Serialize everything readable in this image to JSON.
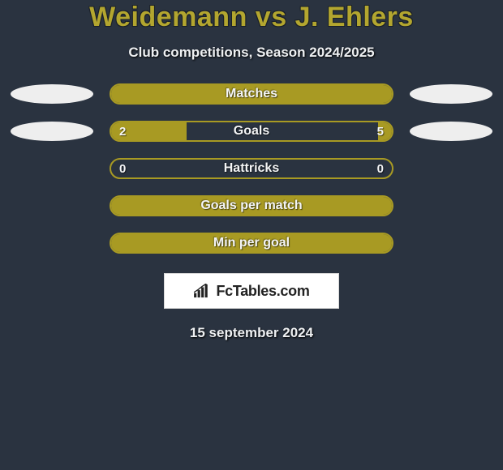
{
  "background_color": "#2a3340",
  "accent_color": "#a89a23",
  "title_color": "#b3a62f",
  "pill_colors": {
    "left": "#eeeeee",
    "right": "#eeeeee"
  },
  "header": {
    "player_left": "Weidemann",
    "vs": "vs",
    "player_right": "J. Ehlers",
    "subtitle": "Club competitions, Season 2024/2025"
  },
  "rows": [
    {
      "label": "Matches",
      "left_value": null,
      "right_value": null,
      "fill_left_pct": 100,
      "fill_right_pct": 0,
      "show_side_pills": true
    },
    {
      "label": "Goals",
      "left_value": "2",
      "right_value": "5",
      "fill_left_pct": 27,
      "fill_right_pct": 5,
      "show_side_pills": true
    },
    {
      "label": "Hattricks",
      "left_value": "0",
      "right_value": "0",
      "fill_left_pct": 0,
      "fill_right_pct": 0,
      "show_side_pills": false
    },
    {
      "label": "Goals per match",
      "left_value": null,
      "right_value": null,
      "fill_left_pct": 100,
      "fill_right_pct": 0,
      "show_side_pills": false
    },
    {
      "label": "Min per goal",
      "left_value": null,
      "right_value": null,
      "fill_left_pct": 100,
      "fill_right_pct": 0,
      "show_side_pills": false
    }
  ],
  "brand": {
    "name": "FcTables.com"
  },
  "date_text": "15 september 2024"
}
